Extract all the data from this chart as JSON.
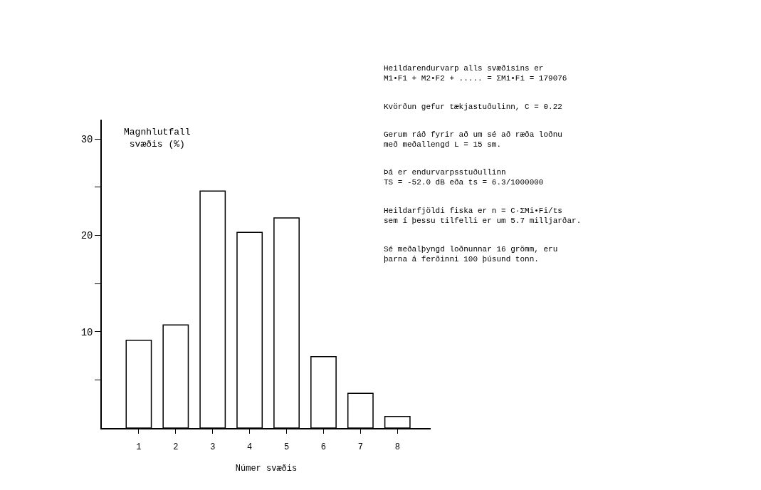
{
  "chart_data": {
    "type": "bar",
    "categories": [
      "1",
      "2",
      "3",
      "4",
      "5",
      "6",
      "7",
      "8"
    ],
    "values": [
      9.1,
      10.7,
      24.6,
      20.3,
      21.8,
      7.4,
      3.6,
      1.2
    ],
    "color": "#ffffff",
    "ylabel": "Magnhlutfall\nsvæðis (%)",
    "xlabel": "Númer svæðis",
    "ylim": [
      0,
      32
    ],
    "yticks": [
      {
        "value": 5,
        "label": null
      },
      10,
      {
        "value": 15,
        "label": null
      },
      20,
      {
        "value": 25,
        "label": null
      },
      30
    ],
    "annotations": [
      "Heildarendurvarp alls svæðisins er\nM1•F1 + M2•F2 + ..... = ΣMi•Fi = 179076",
      "Kvörðun gefur tækjastuðulinn, C = 0.22",
      "Gerum ráð fyrir að um sé að ræða loðnu\nmeð meðallengd L = 15 sm.",
      "Þá er endurvarpsstuðullinn\nTS = -52.0 dB eða ts = 6.3/1000000",
      "Heildarfjöldi fiska er n = C·ΣMi•Fi/ts\nsem í þessu tilfelli er um 5.7 milljarðar.",
      "Sé meðalþyngd loðnunnar 16 grömm, eru\nþarna á ferðinni 100 þúsund tonn."
    ]
  }
}
